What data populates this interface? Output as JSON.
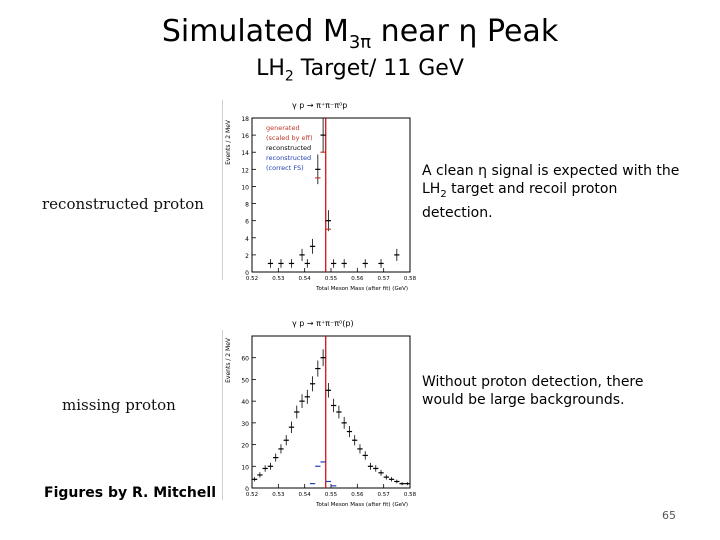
{
  "slide": {
    "title_main": "Simulated M",
    "title_sub": "3π",
    "title_rest": " near η Peak",
    "subtitle_main": "LH",
    "subtitle_sub": "2",
    "subtitle_rest": " Target/ 11 GeV",
    "label_top": "reconstructed proton",
    "label_bottom": "missing proton",
    "note_top_1": "A clean η signal is expected with the",
    "note_top_2a": "LH",
    "note_top_2sub": "2",
    "note_top_2b": " target and recoil proton",
    "note_top_3": "detection.",
    "note_bottom_1": "Without proton detection, there",
    "note_bottom_2": "would be large backgrounds.",
    "credit": "Figures by R. Mitchell",
    "page_number": "65"
  },
  "colors": {
    "generated": "#c0392b",
    "reconstructed": "#000000",
    "reconstructed_correct": "#1f3fb0",
    "peak_line": "#cc0000"
  },
  "chart_data": [
    {
      "type": "bar",
      "title": "γ p → π⁺π⁻π⁰p",
      "xlabel": "Total Meson Mass (after fit) (GeV)",
      "ylabel": "Events / 2 MeV",
      "xlim": [
        0.52,
        0.58
      ],
      "ylim": [
        0,
        18
      ],
      "xticks": [
        "0.52",
        "0.53",
        "0.54",
        "0.55",
        "0.56",
        "0.57",
        "0.58"
      ],
      "yticks": [
        "0",
        "2",
        "4",
        "6",
        "8",
        "10",
        "12",
        "14",
        "16",
        "18"
      ],
      "legend": [
        "generated",
        "(scaled by eff)",
        "reconstructed",
        "reconstructed",
        "(correct FS)"
      ],
      "x": [
        0.521,
        0.523,
        0.525,
        0.527,
        0.529,
        0.531,
        0.533,
        0.535,
        0.537,
        0.539,
        0.541,
        0.543,
        0.545,
        0.547,
        0.549,
        0.551,
        0.553,
        0.555,
        0.557,
        0.559,
        0.561,
        0.563,
        0.565,
        0.567,
        0.569,
        0.571,
        0.573,
        0.575,
        0.577,
        0.579
      ],
      "series": [
        {
          "name": "reconstructed",
          "values": [
            0,
            0,
            0,
            1,
            0,
            1,
            0,
            1,
            0,
            2,
            1,
            3,
            12,
            16,
            6,
            1,
            0,
            1,
            0,
            0,
            0,
            1,
            0,
            0,
            1,
            0,
            0,
            2,
            0,
            0
          ]
        },
        {
          "name": "generated",
          "values": [
            0,
            0,
            0,
            0,
            0,
            0,
            0,
            0,
            0,
            0,
            0,
            0,
            11,
            14,
            5,
            0,
            0,
            0,
            0,
            0,
            0,
            0,
            0,
            0,
            0,
            0,
            0,
            0,
            0,
            0
          ]
        }
      ],
      "peak_x": 0.548
    },
    {
      "type": "bar",
      "title": "γ p → π⁺π⁻π⁰(p)",
      "xlabel": "Total Meson Mass (after fit) (GeV)",
      "ylabel": "Events / 2 MeV",
      "xlim": [
        0.52,
        0.58
      ],
      "ylim": [
        0,
        70
      ],
      "xticks": [
        "0.52",
        "0.53",
        "0.54",
        "0.55",
        "0.56",
        "0.57",
        "0.58"
      ],
      "yticks": [
        "0",
        "10",
        "20",
        "30",
        "40",
        "50",
        "60"
      ],
      "x": [
        0.521,
        0.523,
        0.525,
        0.527,
        0.529,
        0.531,
        0.533,
        0.535,
        0.537,
        0.539,
        0.541,
        0.543,
        0.545,
        0.547,
        0.549,
        0.551,
        0.553,
        0.555,
        0.557,
        0.559,
        0.561,
        0.563,
        0.565,
        0.567,
        0.569,
        0.571,
        0.573,
        0.575,
        0.577,
        0.579
      ],
      "series": [
        {
          "name": "reconstructed",
          "values": [
            4,
            6,
            9,
            10,
            14,
            18,
            22,
            28,
            35,
            40,
            42,
            48,
            55,
            60,
            45,
            38,
            35,
            30,
            26,
            22,
            18,
            15,
            10,
            9,
            7,
            5,
            4,
            3,
            2,
            2
          ]
        },
        {
          "name": "reconstructed (correct FS)",
          "values": [
            0,
            0,
            0,
            0,
            0,
            0,
            0,
            0,
            0,
            0,
            0,
            2,
            10,
            12,
            3,
            1,
            0,
            0,
            0,
            0,
            0,
            0,
            0,
            0,
            0,
            0,
            0,
            0,
            0,
            0
          ]
        }
      ],
      "peak_x": 0.548
    }
  ]
}
